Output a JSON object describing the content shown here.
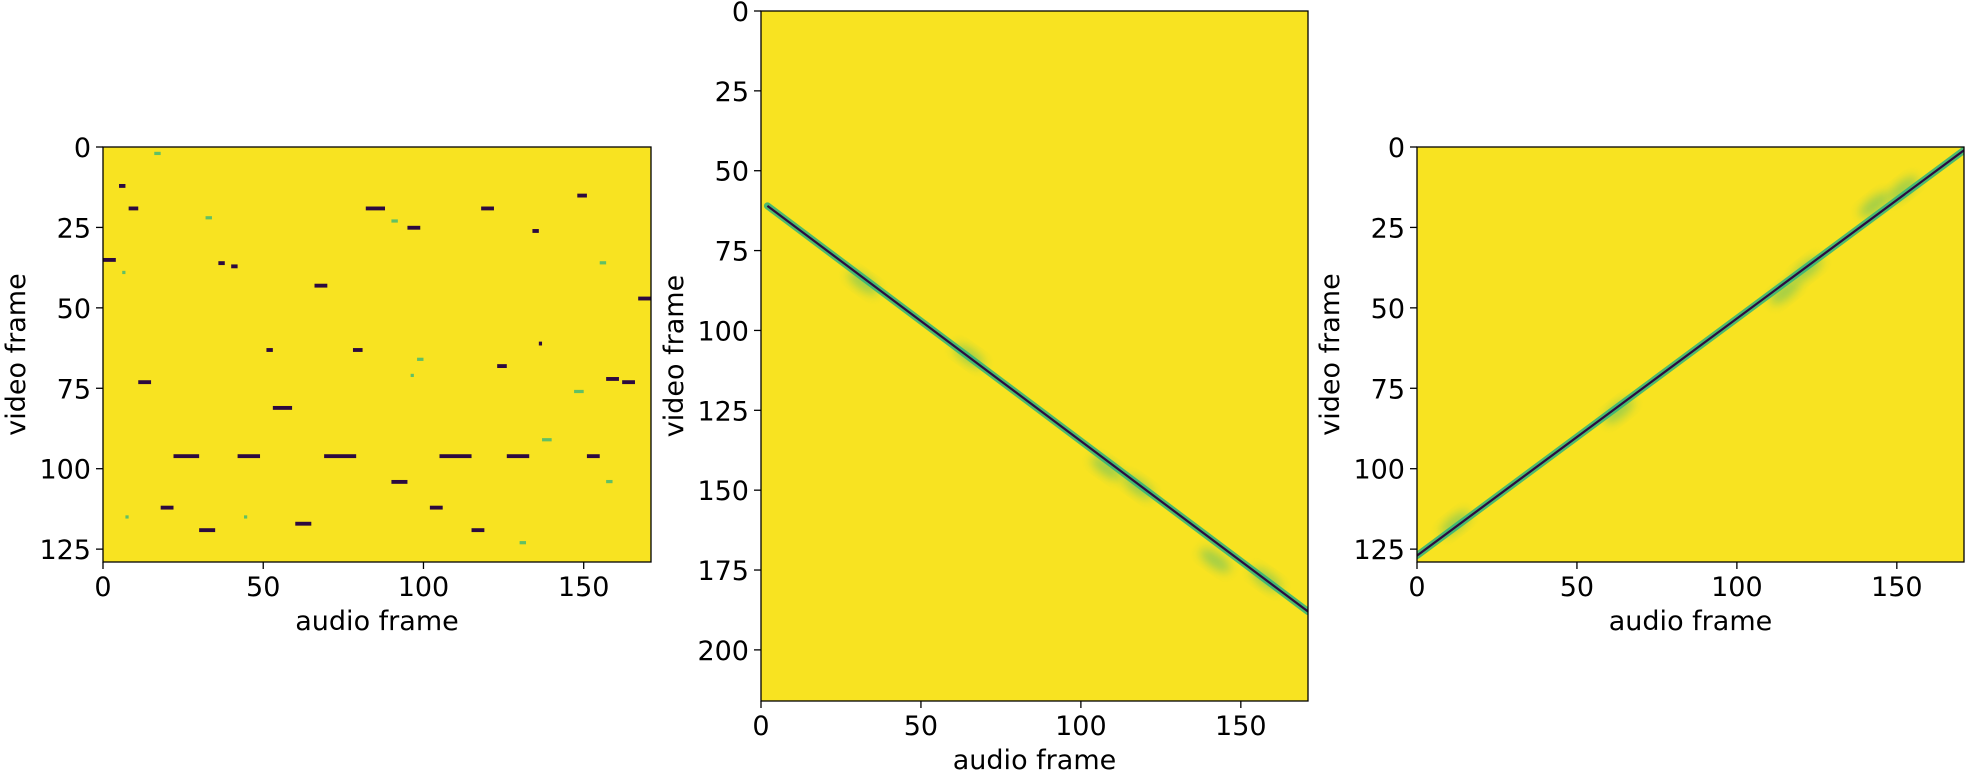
{
  "colors": {
    "background": "#f8e321",
    "mid": "#2fb47c",
    "dark": "#2c0a3f",
    "frame": "#000000"
  },
  "chart_data": [
    {
      "type": "heatmap",
      "title": "",
      "xlabel": "audio frame",
      "ylabel": "video frame",
      "xlim": [
        0,
        171
      ],
      "ylim": [
        129,
        0
      ],
      "xticks": [
        0,
        50,
        100,
        150
      ],
      "yticks": [
        0,
        25,
        50,
        75,
        100,
        125
      ],
      "colormap": "viridis",
      "pattern": "scattered short horizontal low-value segments",
      "segments": [
        {
          "y": 12,
          "x0": 5,
          "x1": 7,
          "level": "dark"
        },
        {
          "y": 19,
          "x0": 8,
          "x1": 11,
          "level": "dark"
        },
        {
          "y": 19,
          "x0": 82,
          "x1": 88,
          "level": "dark"
        },
        {
          "y": 19,
          "x0": 118,
          "x1": 122,
          "level": "dark"
        },
        {
          "y": 15,
          "x0": 148,
          "x1": 151,
          "level": "dark"
        },
        {
          "y": 25,
          "x0": 95,
          "x1": 99,
          "level": "dark"
        },
        {
          "y": 26,
          "x0": 134,
          "x1": 136,
          "level": "dark"
        },
        {
          "y": 35,
          "x0": 0,
          "x1": 4,
          "level": "dark"
        },
        {
          "y": 36,
          "x0": 36,
          "x1": 38,
          "level": "dark"
        },
        {
          "y": 37,
          "x0": 40,
          "x1": 42,
          "level": "dark"
        },
        {
          "y": 43,
          "x0": 66,
          "x1": 70,
          "level": "dark"
        },
        {
          "y": 47,
          "x0": 167,
          "x1": 171,
          "level": "dark"
        },
        {
          "y": 61,
          "x0": 136,
          "x1": 137,
          "level": "dark"
        },
        {
          "y": 63,
          "x0": 51,
          "x1": 53,
          "level": "dark"
        },
        {
          "y": 63,
          "x0": 78,
          "x1": 81,
          "level": "dark"
        },
        {
          "y": 68,
          "x0": 123,
          "x1": 126,
          "level": "dark"
        },
        {
          "y": 72,
          "x0": 157,
          "x1": 161,
          "level": "dark"
        },
        {
          "y": 73,
          "x0": 11,
          "x1": 15,
          "level": "dark"
        },
        {
          "y": 73,
          "x0": 162,
          "x1": 166,
          "level": "dark"
        },
        {
          "y": 81,
          "x0": 53,
          "x1": 59,
          "level": "dark"
        },
        {
          "y": 96,
          "x0": 22,
          "x1": 30,
          "level": "dark"
        },
        {
          "y": 96,
          "x0": 42,
          "x1": 49,
          "level": "dark"
        },
        {
          "y": 96,
          "x0": 69,
          "x1": 79,
          "level": "dark"
        },
        {
          "y": 96,
          "x0": 105,
          "x1": 115,
          "level": "dark"
        },
        {
          "y": 96,
          "x0": 126,
          "x1": 133,
          "level": "dark"
        },
        {
          "y": 96,
          "x0": 151,
          "x1": 155,
          "level": "dark"
        },
        {
          "y": 104,
          "x0": 90,
          "x1": 95,
          "level": "dark"
        },
        {
          "y": 112,
          "x0": 18,
          "x1": 22,
          "level": "dark"
        },
        {
          "y": 112,
          "x0": 102,
          "x1": 106,
          "level": "dark"
        },
        {
          "y": 117,
          "x0": 60,
          "x1": 65,
          "level": "dark"
        },
        {
          "y": 119,
          "x0": 30,
          "x1": 35,
          "level": "dark"
        },
        {
          "y": 119,
          "x0": 115,
          "x1": 119,
          "level": "dark"
        },
        {
          "y": 2,
          "x0": 16,
          "x1": 18,
          "level": "mid"
        },
        {
          "y": 22,
          "x0": 32,
          "x1": 34,
          "level": "mid"
        },
        {
          "y": 23,
          "x0": 90,
          "x1": 92,
          "level": "mid"
        },
        {
          "y": 36,
          "x0": 155,
          "x1": 157,
          "level": "mid"
        },
        {
          "y": 39,
          "x0": 6,
          "x1": 7,
          "level": "mid"
        },
        {
          "y": 66,
          "x0": 98,
          "x1": 100,
          "level": "mid"
        },
        {
          "y": 71,
          "x0": 96,
          "x1": 97,
          "level": "mid"
        },
        {
          "y": 76,
          "x0": 147,
          "x1": 150,
          "level": "mid"
        },
        {
          "y": 91,
          "x0": 137,
          "x1": 140,
          "level": "mid"
        },
        {
          "y": 104,
          "x0": 157,
          "x1": 159,
          "level": "mid"
        },
        {
          "y": 115,
          "x0": 7,
          "x1": 8,
          "level": "mid"
        },
        {
          "y": 115,
          "x0": 44,
          "x1": 45,
          "level": "mid"
        },
        {
          "y": 123,
          "x0": 130,
          "x1": 132,
          "level": "mid"
        }
      ]
    },
    {
      "type": "heatmap",
      "title": "",
      "xlabel": "audio frame",
      "ylabel": "video frame",
      "xlim": [
        0,
        171
      ],
      "ylim": [
        216,
        0
      ],
      "xticks": [
        0,
        50,
        100,
        150
      ],
      "yticks": [
        0,
        25,
        50,
        75,
        100,
        125,
        150,
        175,
        200
      ],
      "colormap": "viridis",
      "pattern": "low-value diagonal from (2, 61) to (171, 188)",
      "diagonal": [
        [
          2,
          61
        ],
        [
          171,
          188
        ]
      ],
      "blur_regions": [
        {
          "x": 32,
          "y": 85
        },
        {
          "x": 65,
          "y": 108
        },
        {
          "x": 108,
          "y": 143
        },
        {
          "x": 118,
          "y": 149
        },
        {
          "x": 142,
          "y": 172
        },
        {
          "x": 158,
          "y": 178
        }
      ]
    },
    {
      "type": "heatmap",
      "title": "",
      "xlabel": "audio frame",
      "ylabel": "video frame",
      "xlim": [
        0,
        171
      ],
      "ylim": [
        129,
        0
      ],
      "xticks": [
        0,
        50,
        100,
        150
      ],
      "yticks": [
        0,
        25,
        50,
        75,
        100,
        125
      ],
      "colormap": "viridis",
      "pattern": "low-value diagonal from (0, 127) to (171, 1)",
      "diagonal": [
        [
          0,
          127
        ],
        [
          171,
          1
        ]
      ],
      "blur_regions": [
        {
          "x": 12,
          "y": 117
        },
        {
          "x": 63,
          "y": 82
        },
        {
          "x": 115,
          "y": 45
        },
        {
          "x": 122,
          "y": 38
        },
        {
          "x": 143,
          "y": 18
        },
        {
          "x": 152,
          "y": 13
        }
      ]
    }
  ]
}
